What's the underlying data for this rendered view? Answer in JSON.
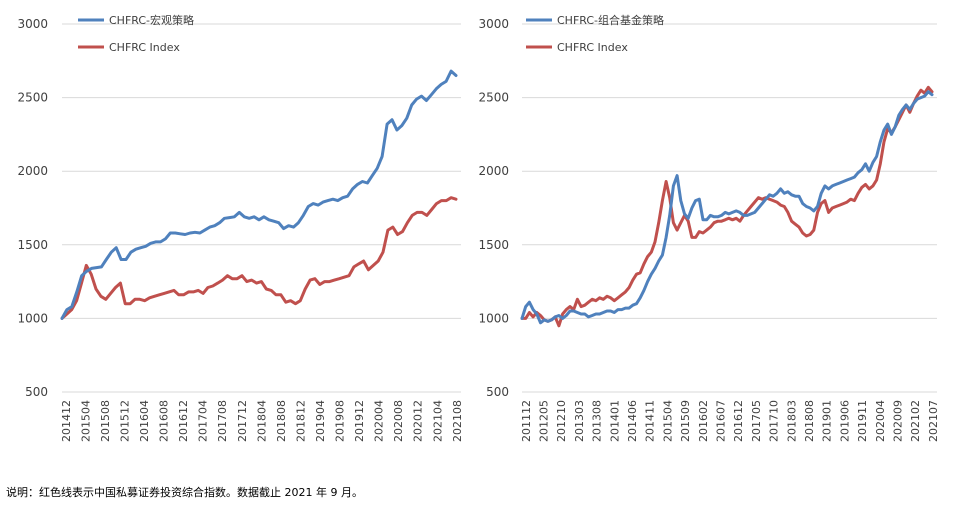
{
  "note": "说明：红色线表示中国私募证券投资综合指数。数据截止 2021 年 9 月。",
  "colors": {
    "blue": "#4f81bd",
    "red": "#c0504d",
    "grid": "#d9d9d9"
  },
  "chart_data": [
    {
      "type": "line",
      "ylim": [
        500,
        3000
      ],
      "yticks": [
        500,
        1000,
        1500,
        2000,
        2500,
        3000
      ],
      "xtick_labels": [
        "201412",
        "201504",
        "201508",
        "201512",
        "201604",
        "201608",
        "201612",
        "201704",
        "201708",
        "201712",
        "201804",
        "201808",
        "201812",
        "201904",
        "201908",
        "201912",
        "202004",
        "202008",
        "202012",
        "202104",
        "202108"
      ],
      "x_start": "2014-12",
      "x_end": "2021-09",
      "legend_position": "top-left",
      "series": [
        {
          "name": "CHFRC-宏观策略",
          "color": "#4f81bd",
          "values": [
            1000,
            1060,
            1080,
            1180,
            1290,
            1320,
            1340,
            1345,
            1350,
            1400,
            1450,
            1480,
            1400,
            1400,
            1450,
            1470,
            1480,
            1490,
            1510,
            1520,
            1520,
            1540,
            1580,
            1580,
            1575,
            1570,
            1580,
            1585,
            1580,
            1600,
            1620,
            1630,
            1650,
            1680,
            1685,
            1690,
            1720,
            1690,
            1680,
            1690,
            1670,
            1690,
            1670,
            1660,
            1650,
            1610,
            1630,
            1620,
            1650,
            1700,
            1760,
            1780,
            1770,
            1790,
            1800,
            1810,
            1800,
            1820,
            1830,
            1880,
            1910,
            1930,
            1920,
            1970,
            2020,
            2100,
            2320,
            2350,
            2280,
            2310,
            2360,
            2450,
            2490,
            2510,
            2480,
            2520,
            2560,
            2590,
            2610,
            2680,
            2650
          ]
        },
        {
          "name": "CHFRC Index",
          "color": "#c0504d",
          "values": [
            1000,
            1030,
            1060,
            1120,
            1240,
            1360,
            1300,
            1200,
            1150,
            1130,
            1170,
            1210,
            1240,
            1100,
            1100,
            1130,
            1130,
            1120,
            1140,
            1150,
            1160,
            1170,
            1180,
            1190,
            1160,
            1160,
            1180,
            1180,
            1190,
            1170,
            1210,
            1220,
            1240,
            1260,
            1290,
            1270,
            1270,
            1290,
            1250,
            1260,
            1240,
            1250,
            1200,
            1190,
            1160,
            1160,
            1110,
            1120,
            1100,
            1120,
            1200,
            1260,
            1270,
            1230,
            1250,
            1250,
            1260,
            1270,
            1280,
            1290,
            1350,
            1370,
            1390,
            1330,
            1360,
            1390,
            1450,
            1600,
            1620,
            1570,
            1590,
            1650,
            1700,
            1720,
            1720,
            1700,
            1740,
            1780,
            1800,
            1800,
            1820,
            1810
          ]
        }
      ]
    },
    {
      "type": "line",
      "ylim": [
        500,
        3000
      ],
      "yticks": [
        500,
        1000,
        1500,
        2000,
        2500,
        3000
      ],
      "xtick_labels": [
        "201112",
        "201205",
        "201210",
        "201303",
        "201308",
        "201401",
        "201406",
        "201411",
        "201504",
        "201509",
        "201602",
        "201607",
        "201612",
        "201705",
        "201710",
        "201803",
        "201808",
        "201901",
        "201906",
        "201911",
        "202004",
        "202009",
        "202102",
        "202107"
      ],
      "x_start": "2011-12",
      "x_end": "2021-09",
      "legend_position": "top-left",
      "series": [
        {
          "name": "CHFRC-组合基金策略",
          "color": "#4f81bd",
          "values": [
            1000,
            1080,
            1110,
            1060,
            1030,
            970,
            990,
            980,
            990,
            1010,
            1020,
            1000,
            1020,
            1050,
            1050,
            1040,
            1030,
            1030,
            1010,
            1020,
            1030,
            1030,
            1040,
            1050,
            1050,
            1040,
            1060,
            1060,
            1070,
            1070,
            1090,
            1100,
            1140,
            1190,
            1250,
            1300,
            1340,
            1390,
            1430,
            1550,
            1700,
            1900,
            1970,
            1800,
            1710,
            1680,
            1750,
            1800,
            1810,
            1670,
            1670,
            1700,
            1690,
            1690,
            1700,
            1720,
            1710,
            1720,
            1730,
            1720,
            1700,
            1700,
            1710,
            1720,
            1750,
            1780,
            1810,
            1840,
            1830,
            1850,
            1880,
            1850,
            1860,
            1840,
            1830,
            1830,
            1780,
            1760,
            1750,
            1730,
            1760,
            1850,
            1900,
            1880,
            1900,
            1910,
            1920,
            1930,
            1940,
            1950,
            1960,
            1990,
            2010,
            2050,
            2000,
            2060,
            2100,
            2200,
            2280,
            2320,
            2250,
            2300,
            2380,
            2420,
            2450,
            2420,
            2460,
            2490,
            2500,
            2510,
            2540,
            2520
          ]
        },
        {
          "name": "CHFRC Index",
          "color": "#c0504d",
          "values": [
            1000,
            1000,
            1040,
            1010,
            1040,
            1020,
            990,
            980,
            990,
            1010,
            950,
            1030,
            1060,
            1080,
            1060,
            1130,
            1080,
            1090,
            1110,
            1130,
            1120,
            1140,
            1130,
            1150,
            1140,
            1120,
            1140,
            1160,
            1180,
            1210,
            1260,
            1300,
            1310,
            1370,
            1420,
            1450,
            1520,
            1650,
            1800,
            1930,
            1820,
            1650,
            1600,
            1650,
            1700,
            1660,
            1550,
            1550,
            1590,
            1580,
            1600,
            1620,
            1650,
            1660,
            1660,
            1670,
            1680,
            1670,
            1680,
            1660,
            1700,
            1730,
            1760,
            1790,
            1820,
            1810,
            1820,
            1810,
            1800,
            1790,
            1770,
            1760,
            1720,
            1660,
            1640,
            1620,
            1580,
            1560,
            1570,
            1600,
            1720,
            1780,
            1800,
            1720,
            1750,
            1760,
            1770,
            1780,
            1790,
            1810,
            1800,
            1850,
            1890,
            1910,
            1880,
            1900,
            1940,
            2050,
            2200,
            2290,
            2260,
            2300,
            2350,
            2400,
            2450,
            2400,
            2460,
            2510,
            2550,
            2530,
            2570,
            2540
          ]
        }
      ]
    }
  ]
}
